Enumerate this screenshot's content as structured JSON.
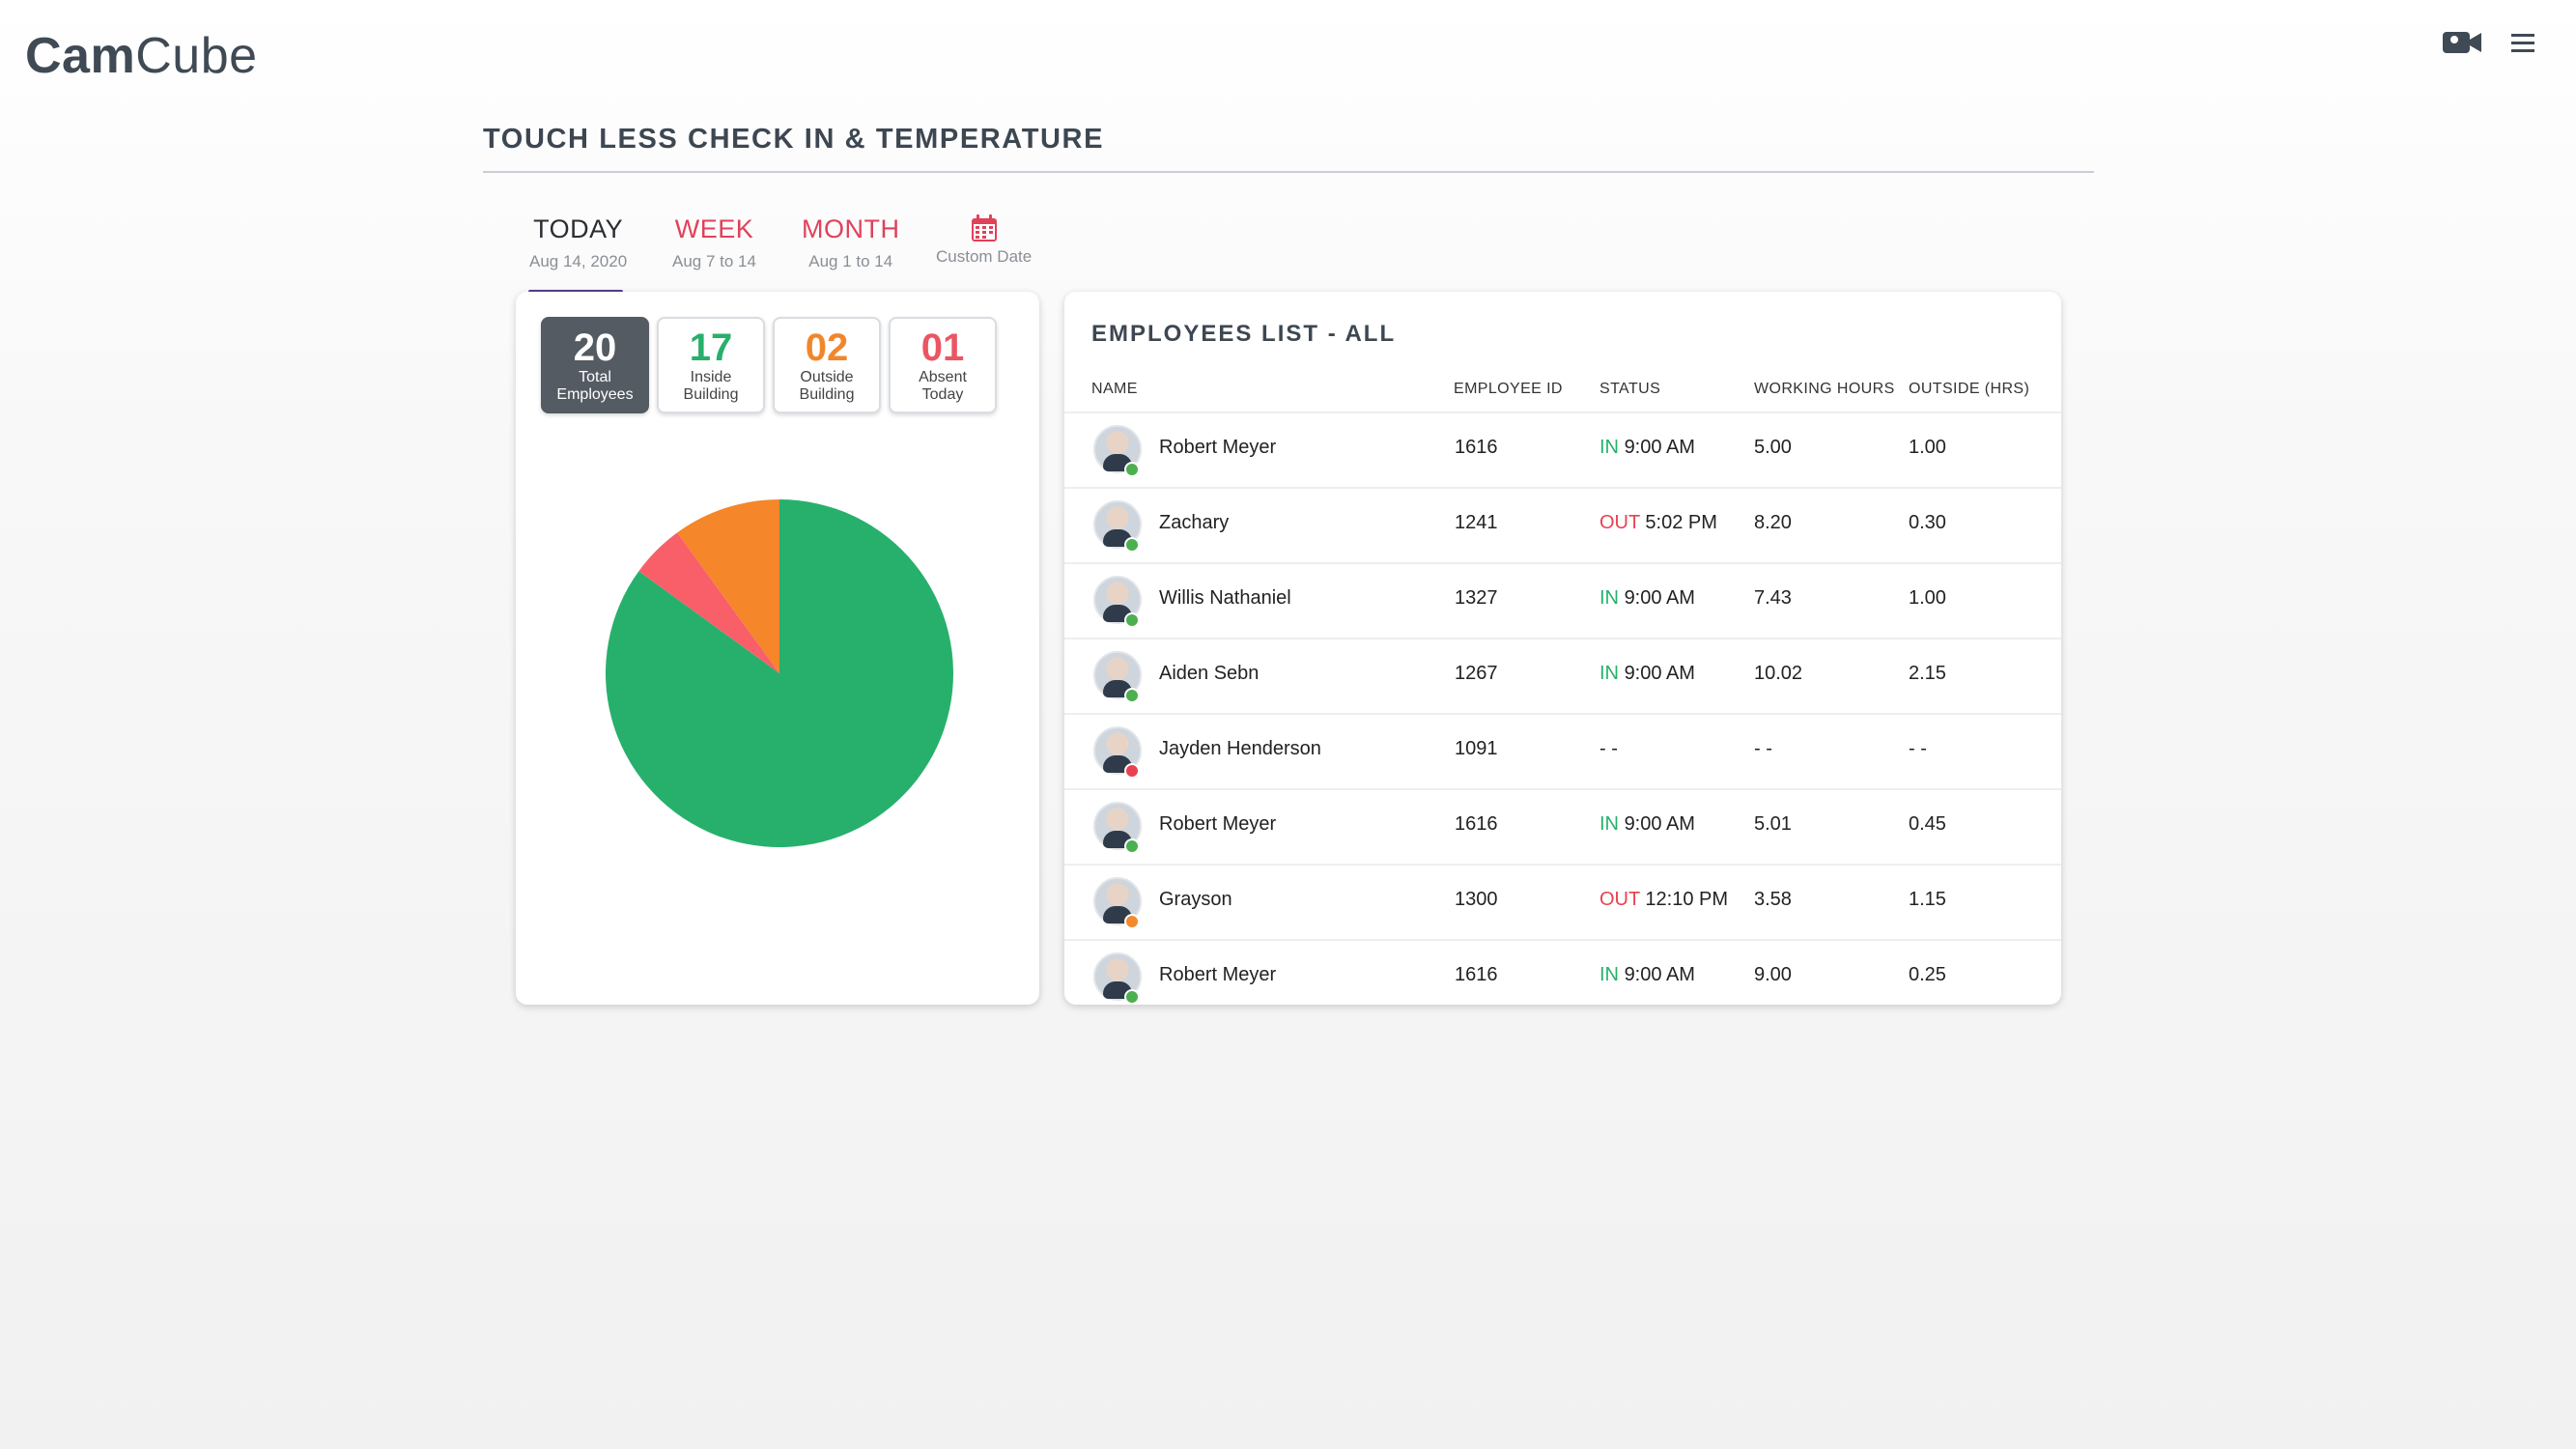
{
  "app": {
    "logo_bold": "Cam",
    "logo_light": "Cube"
  },
  "header": {
    "camera_icon": "video-camera-icon",
    "menu_icon": "hamburger-menu-icon"
  },
  "page": {
    "title": "TOUCH LESS CHECK IN & TEMPERATURE"
  },
  "tabs": [
    {
      "label": "TODAY",
      "sub": "Aug 14, 2020",
      "active": true
    },
    {
      "label": "WEEK",
      "sub": "Aug 7 to 14"
    },
    {
      "label": "MONTH",
      "sub": "Aug 1 to 14"
    },
    {
      "label": "",
      "sub": "Custom Date",
      "icon": "calendar-icon"
    }
  ],
  "stats": [
    {
      "value": "20",
      "line1": "Total",
      "line2": "Employees"
    },
    {
      "value": "17",
      "line1": "Inside",
      "line2": "Building"
    },
    {
      "value": "02",
      "line1": "Outside",
      "line2": "Building"
    },
    {
      "value": "01",
      "line1": "Absent",
      "line2": "Today"
    }
  ],
  "colors": {
    "inside": "#27b06c",
    "outside": "#f2862b",
    "absent": "#ea5663",
    "accent": "#5b3d8a"
  },
  "chart_data": {
    "type": "pie",
    "slices": [
      {
        "label": "Inside Building",
        "value": 17,
        "color": "#27b06c"
      },
      {
        "label": "Absent Today",
        "value": 1,
        "color": "#f85f68"
      },
      {
        "label": "Outside Building",
        "value": 2,
        "color": "#f5862a"
      }
    ]
  },
  "employees": {
    "title": "EMPLOYEES LIST - ALL",
    "columns": [
      "NAME",
      "EMPLOYEE ID",
      "STATUS",
      "WORKING HOURS",
      "OUTSIDE (HRS)"
    ],
    "rows": [
      {
        "name": "Robert Meyer",
        "id": "1616",
        "status": "IN",
        "time": "9:00 AM",
        "hours": "5.00",
        "outside": "1.00",
        "presence": "green"
      },
      {
        "name": "Zachary",
        "id": "1241",
        "status": "OUT",
        "time": "5:02 PM",
        "hours": "8.20",
        "outside": "0.30",
        "presence": "green"
      },
      {
        "name": "Willis Nathaniel",
        "id": "1327",
        "status": "IN",
        "time": "9:00 AM",
        "hours": "7.43",
        "outside": "1.00",
        "presence": "green"
      },
      {
        "name": "Aiden Sebn",
        "id": "1267",
        "status": "IN",
        "time": "9:00 AM",
        "hours": "10.02",
        "outside": "2.15",
        "presence": "green"
      },
      {
        "name": "Jayden Henderson",
        "id": "1091",
        "status": "",
        "time": "- -",
        "hours": "- -",
        "outside": "- -",
        "presence": "red"
      },
      {
        "name": "Robert Meyer",
        "id": "1616",
        "status": "IN",
        "time": "9:00 AM",
        "hours": "5.01",
        "outside": "0.45",
        "presence": "green"
      },
      {
        "name": "Grayson",
        "id": "1300",
        "status": "OUT",
        "time": "12:10 PM",
        "hours": "3.58",
        "outside": "1.15",
        "presence": "orange"
      },
      {
        "name": "Robert Meyer",
        "id": "1616",
        "status": "IN",
        "time": "9:00 AM",
        "hours": "9.00",
        "outside": "0.25",
        "presence": "green"
      }
    ]
  }
}
